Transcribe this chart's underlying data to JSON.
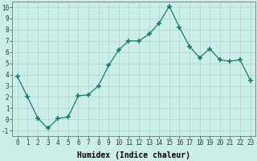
{
  "x": [
    0,
    1,
    2,
    3,
    4,
    5,
    6,
    7,
    8,
    9,
    10,
    11,
    12,
    13,
    14,
    15,
    16,
    17,
    18,
    19,
    20,
    21,
    22,
    23
  ],
  "y": [
    3.8,
    2.0,
    0.1,
    -0.8,
    0.1,
    0.2,
    2.1,
    2.2,
    3.0,
    4.8,
    6.2,
    7.0,
    7.0,
    7.6,
    8.6,
    10.1,
    8.2,
    6.5,
    5.5,
    6.3,
    5.3,
    5.2,
    5.3,
    3.5
  ],
  "line_color": "#1a7a6a",
  "marker": "+",
  "marker_size": 4,
  "bg_color": "#cceee8",
  "grid_color": "#b0d8d2",
  "xlabel": "Humidex (Indice chaleur)",
  "xlabel_fontsize": 7,
  "xlim": [
    -0.5,
    23.5
  ],
  "ylim": [
    -1.5,
    10.5
  ],
  "yticks": [
    -1,
    0,
    1,
    2,
    3,
    4,
    5,
    6,
    7,
    8,
    9,
    10
  ],
  "xticks": [
    0,
    1,
    2,
    3,
    4,
    5,
    6,
    7,
    8,
    9,
    10,
    11,
    12,
    13,
    14,
    15,
    16,
    17,
    18,
    19,
    20,
    21,
    22,
    23
  ],
  "tick_fontsize": 5.5
}
